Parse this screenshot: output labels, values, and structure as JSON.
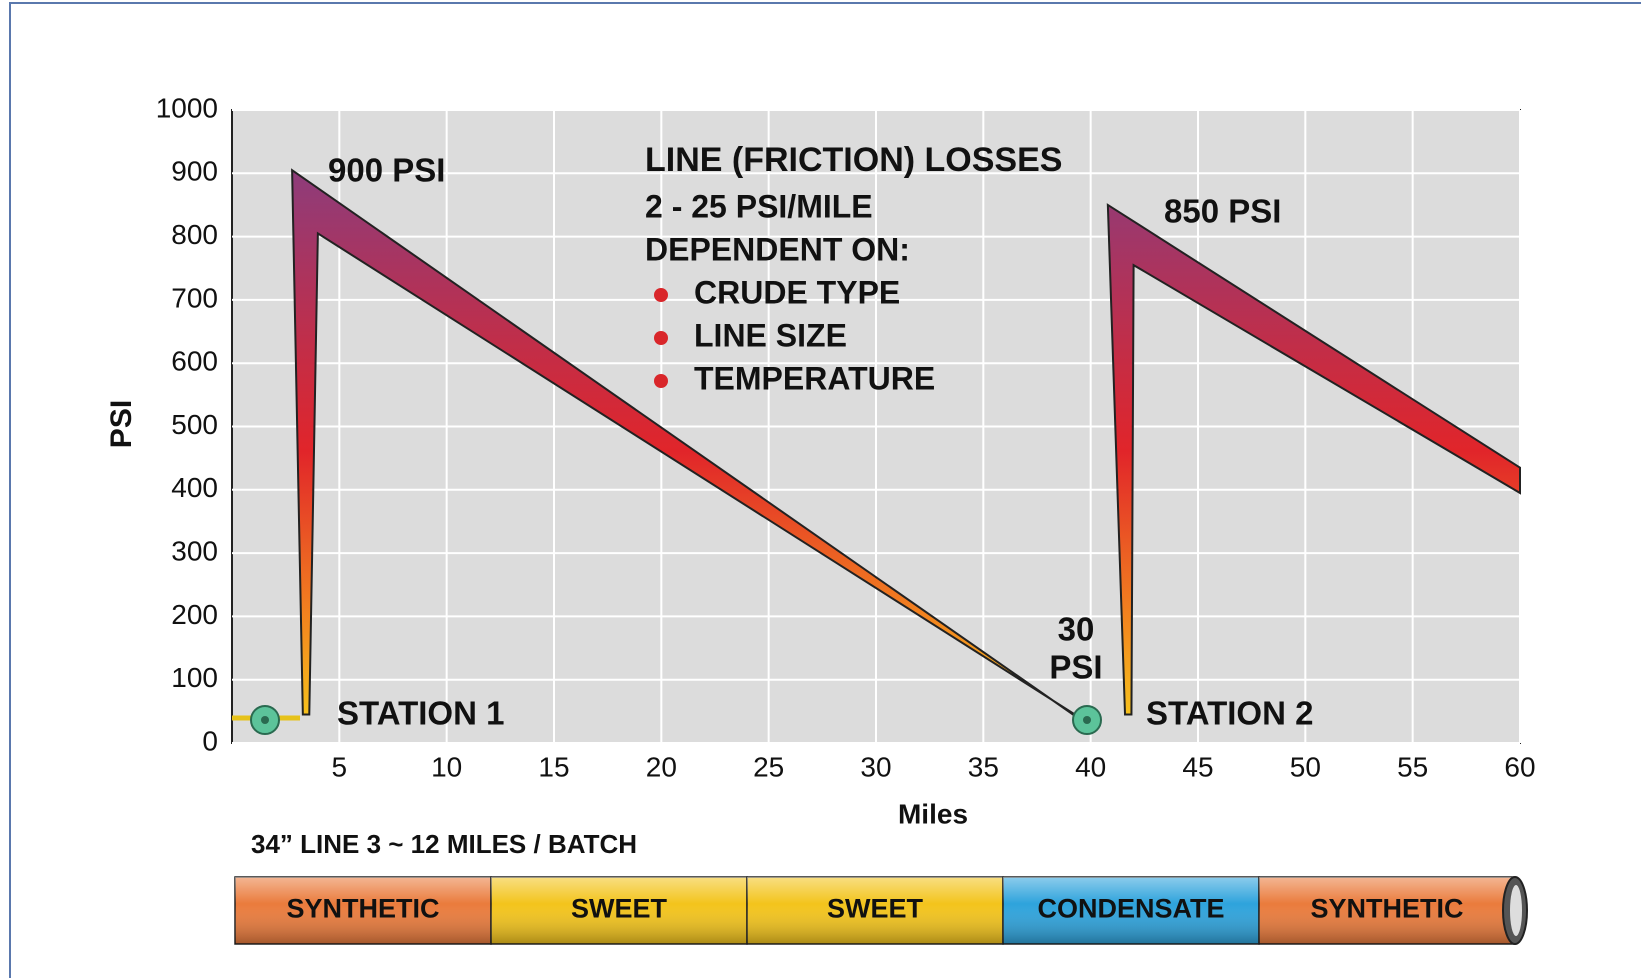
{
  "chart_data": {
    "type": "area-polygon",
    "y_label": "PSI",
    "x_label": "Miles",
    "xlim": [
      0,
      60
    ],
    "xticks": [
      5,
      10,
      15,
      20,
      25,
      30,
      35,
      40,
      45,
      50,
      55,
      60
    ],
    "ylim": [
      0,
      1000
    ],
    "yticks": [
      0,
      100,
      200,
      300,
      400,
      500,
      600,
      700,
      800,
      900,
      1000
    ],
    "grid": true,
    "series": [
      {
        "color": "#c0283a",
        "x": [
          3.3,
          2.8,
          39.6,
          40.2,
          4.0,
          3.6
        ],
        "values": [
          45,
          905,
          35,
          25,
          805,
          45
        ]
      },
      {
        "color": "#c0283a",
        "x": [
          41.6,
          40.8,
          60,
          60,
          42.0,
          41.9
        ],
        "values": [
          45,
          850,
          435,
          395,
          755,
          45
        ]
      }
    ],
    "annotations": [
      "900 PSI",
      "850 PSI",
      "30",
      "PSI",
      "STATION 1",
      "STATION 2"
    ],
    "info": {
      "title": "LINE (FRICTION) LOSSES",
      "lines": [
        "2 - 25 PSI/MILE",
        "DEPENDENT ON:"
      ],
      "bullets": [
        "CRUDE TYPE",
        "LINE SIZE",
        "TEMPERATURE"
      ]
    },
    "pipe": {
      "caption": "34” LINE 3 ~ 12 MILES / BATCH",
      "segments": [
        {
          "name": "SYNTHETIC",
          "color": "#ea7b3c"
        },
        {
          "name": "SWEET",
          "color": "#f3c41c"
        },
        {
          "name": "SWEET",
          "color": "#f3c41c"
        },
        {
          "name": "CONDENSATE",
          "color": "#2ea3dc"
        },
        {
          "name": "SYNTHETIC",
          "color": "#ea7b3c"
        }
      ]
    }
  }
}
